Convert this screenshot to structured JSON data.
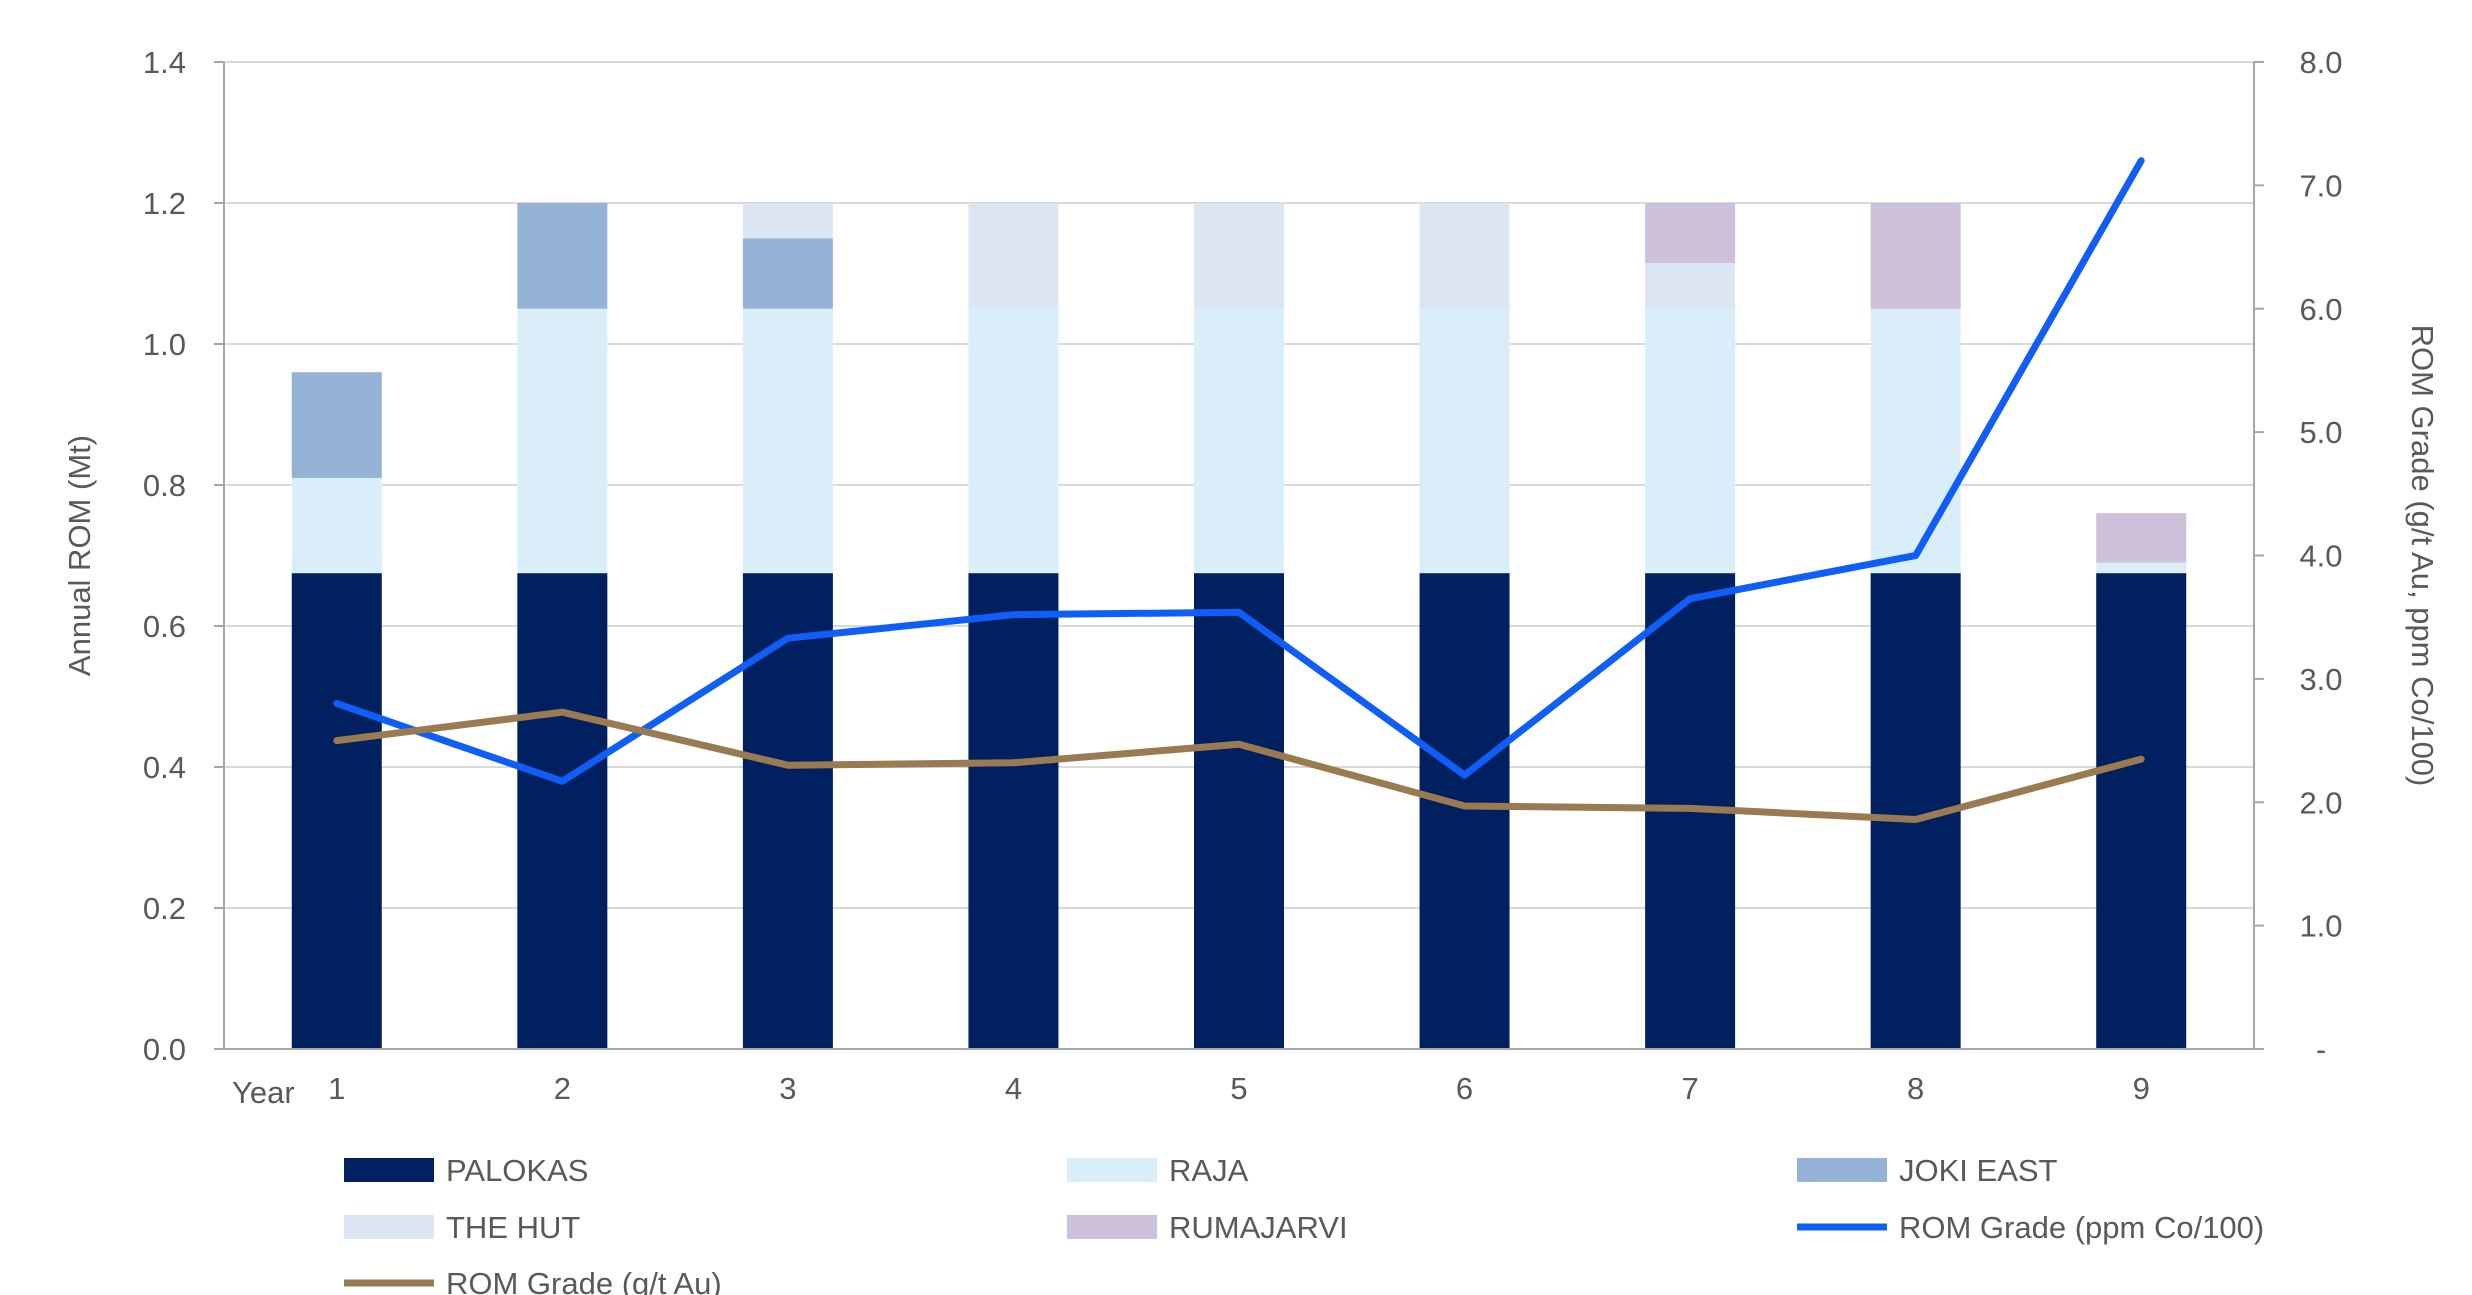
{
  "chart_data": {
    "type": "bar",
    "stacked": true,
    "x_prefix_label": "Year",
    "categories": [
      "1",
      "2",
      "3",
      "4",
      "5",
      "6",
      "7",
      "8",
      "9"
    ],
    "y_left": {
      "label": "Annual ROM (Mt)",
      "ylim": [
        0,
        1.4
      ],
      "ticks": [
        "0.0",
        "0.2",
        "0.4",
        "0.6",
        "0.8",
        "1.0",
        "1.2",
        "1.4"
      ]
    },
    "y_right": {
      "label": "ROM Grade (g/t Au, ppm Co/100)",
      "ylim": [
        0,
        8
      ],
      "ticks": [
        "-",
        "1.0",
        "2.0",
        "3.0",
        "4.0",
        "5.0",
        "6.0",
        "7.0",
        "8.0"
      ]
    },
    "grid": true,
    "series": [
      {
        "name": "PALOKAS",
        "kind": "bar",
        "axis": "left",
        "color": "#002060",
        "values": [
          0.675,
          0.675,
          0.675,
          0.675,
          0.675,
          0.675,
          0.675,
          0.675,
          0.675
        ]
      },
      {
        "name": "RAJA",
        "kind": "bar",
        "axis": "left",
        "color": "#DAEEF9",
        "values": [
          0.135,
          0.375,
          0.375,
          0.375,
          0.375,
          0.375,
          0.375,
          0.375,
          0.015
        ]
      },
      {
        "name": "JOKI EAST",
        "kind": "bar",
        "axis": "left",
        "color": "#95B3D7",
        "values": [
          0.15,
          0.15,
          0.1,
          0,
          0,
          0,
          0,
          0,
          0
        ]
      },
      {
        "name": "THE HUT",
        "kind": "bar",
        "axis": "left",
        "color": "#DCE6F2",
        "values": [
          0,
          0,
          0.05,
          0.15,
          0.15,
          0.15,
          0.065,
          0,
          0
        ]
      },
      {
        "name": "RUMAJARVI",
        "kind": "bar",
        "axis": "left",
        "color": "#CCC0DA",
        "values": [
          0,
          0,
          0,
          0,
          0,
          0,
          0.085,
          0.15,
          0.07
        ]
      },
      {
        "name": "ROM Grade (ppm Co/100)",
        "kind": "line",
        "axis": "right",
        "color": "#0F5EF7",
        "values": [
          2.8,
          2.17,
          3.33,
          3.52,
          3.54,
          2.22,
          3.65,
          4.0,
          7.2
        ]
      },
      {
        "name": "ROM Grade (g/t Au)",
        "kind": "line",
        "axis": "right",
        "color": "#9A7A50",
        "values": [
          2.5,
          2.73,
          2.3,
          2.32,
          2.47,
          1.97,
          1.95,
          1.86,
          2.35
        ]
      }
    ]
  }
}
